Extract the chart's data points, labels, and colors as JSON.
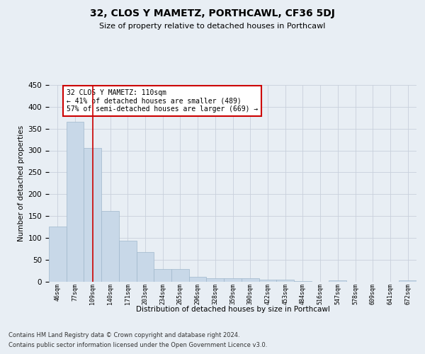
{
  "title": "32, CLOS Y MAMETZ, PORTHCAWL, CF36 5DJ",
  "subtitle": "Size of property relative to detached houses in Porthcawl",
  "xlabel": "Distribution of detached houses by size in Porthcawl",
  "ylabel": "Number of detached properties",
  "categories": [
    "46sqm",
    "77sqm",
    "109sqm",
    "140sqm",
    "171sqm",
    "203sqm",
    "234sqm",
    "265sqm",
    "296sqm",
    "328sqm",
    "359sqm",
    "390sqm",
    "422sqm",
    "453sqm",
    "484sqm",
    "516sqm",
    "547sqm",
    "578sqm",
    "609sqm",
    "641sqm",
    "672sqm"
  ],
  "values": [
    126,
    365,
    305,
    162,
    93,
    67,
    28,
    28,
    10,
    7,
    8,
    8,
    4,
    4,
    1,
    0,
    3,
    0,
    0,
    0,
    3
  ],
  "bar_color": "#c8d8e8",
  "bar_edge_color": "#a0b8cc",
  "grid_color": "#c8d0dc",
  "vline_color": "#cc0000",
  "vline_x_index": 2,
  "annotation_text": "32 CLOS Y MAMETZ: 110sqm\n← 41% of detached houses are smaller (489)\n57% of semi-detached houses are larger (669) →",
  "annotation_box_color": "#ffffff",
  "annotation_box_edge": "#cc0000",
  "ylim": [
    0,
    450
  ],
  "yticks": [
    0,
    50,
    100,
    150,
    200,
    250,
    300,
    350,
    400,
    450
  ],
  "footer_line1": "Contains HM Land Registry data © Crown copyright and database right 2024.",
  "footer_line2": "Contains public sector information licensed under the Open Government Licence v3.0.",
  "background_color": "#e8eef4",
  "plot_bg_color": "#e8eef4"
}
